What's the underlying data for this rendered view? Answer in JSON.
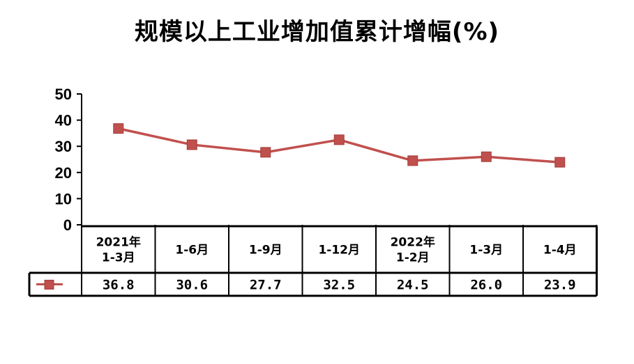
{
  "title": "规模以上工业增加值累计增幅(%)",
  "chart_data": {
    "type": "line",
    "title": "规模以上工业增加值累计增幅(%)",
    "categories": [
      [
        "2021年",
        "1-3月"
      ],
      [
        "1-6月"
      ],
      [
        "1-9月"
      ],
      [
        "1-12月"
      ],
      [
        "2022年",
        "1-2月"
      ],
      [
        "1-3月"
      ],
      [
        "1-4月"
      ]
    ],
    "series": [
      {
        "values": [
          36.8,
          30.6,
          27.7,
          32.5,
          24.5,
          26.0,
          23.9
        ],
        "labels": [
          "36.8",
          "30.6",
          "27.7",
          "32.5",
          "24.5",
          "26.0",
          "23.9"
        ],
        "color": "#C0504D"
      }
    ],
    "yticks": [
      "0",
      "10",
      "20",
      "30",
      "40",
      "50"
    ],
    "ylim": [
      0,
      50
    ],
    "grid": false,
    "legend": "data-table"
  }
}
